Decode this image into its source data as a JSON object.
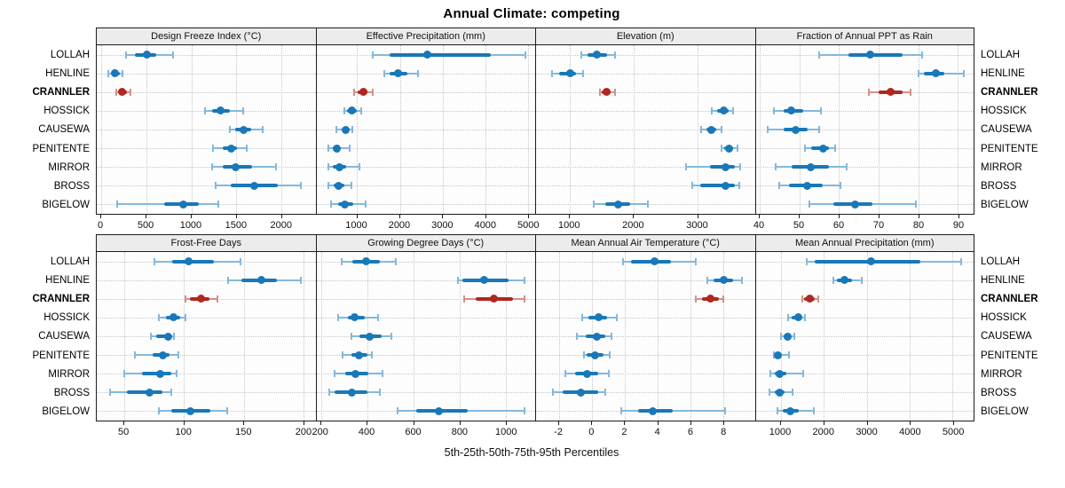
{
  "title": "Annual Climate: competing",
  "footer": "5th-25th-50th-75th-95th Percentiles",
  "sites": [
    "LOLLAH",
    "HENLINE",
    "CRANNLER",
    "HOSSICK",
    "CAUSEWA",
    "PENITENTE",
    "MIRROR",
    "BROSS",
    "BIGELOW"
  ],
  "highlight_site": "CRANNLER",
  "colors": {
    "blue": "#1878b8",
    "blue_light": "#85b8da",
    "red": "#b02620",
    "red_light": "#d4908c",
    "strip_bg": "#ececec",
    "grid": "#c6c6c6",
    "border": "#1c1c1c"
  },
  "chart_data": [
    {
      "type": "dotplot-interval",
      "title": "Design Freeze Index (°C)",
      "xlim": [
        -50,
        2380
      ],
      "ticks": [
        0,
        500,
        1000,
        1500,
        2000
      ],
      "percentile_labels": [
        "5th",
        "25th",
        "50th",
        "75th",
        "95th"
      ],
      "series": [
        {
          "site": "LOLLAH",
          "percentiles": [
            275,
            370,
            505,
            615,
            800
          ]
        },
        {
          "site": "HENLINE",
          "percentiles": [
            80,
            120,
            155,
            205,
            235
          ]
        },
        {
          "site": "CRANNLER",
          "percentiles": [
            170,
            195,
            235,
            285,
            325
          ]
        },
        {
          "site": "HOSSICK",
          "percentiles": [
            1150,
            1235,
            1330,
            1430,
            1575
          ]
        },
        {
          "site": "CAUSEWA",
          "percentiles": [
            1430,
            1490,
            1580,
            1665,
            1795
          ]
        },
        {
          "site": "PENITENTE",
          "percentiles": [
            1240,
            1345,
            1440,
            1505,
            1620
          ]
        },
        {
          "site": "MIRROR",
          "percentiles": [
            1230,
            1345,
            1495,
            1680,
            1940
          ]
        },
        {
          "site": "BROSS",
          "percentiles": [
            1270,
            1440,
            1700,
            1960,
            2215
          ]
        },
        {
          "site": "BIGELOW",
          "percentiles": [
            180,
            695,
            915,
            1085,
            1305
          ]
        }
      ]
    },
    {
      "type": "dotplot-interval",
      "title": "Effective Precipitation (mm)",
      "xlim": [
        50,
        5160
      ],
      "ticks": [
        1000,
        2000,
        3000,
        4000,
        5000
      ],
      "percentile_labels": [
        "5th",
        "25th",
        "50th",
        "75th",
        "95th"
      ],
      "series": [
        {
          "site": "LOLLAH",
          "percentiles": [
            1370,
            1755,
            2645,
            4130,
            4940
          ]
        },
        {
          "site": "HENLINE",
          "percentiles": [
            1635,
            1755,
            1965,
            2175,
            2420
          ]
        },
        {
          "site": "CRANNLER",
          "percentiles": [
            935,
            1020,
            1140,
            1245,
            1370
          ]
        },
        {
          "site": "HOSSICK",
          "percentiles": [
            695,
            775,
            880,
            985,
            1090
          ]
        },
        {
          "site": "CAUSEWA",
          "percentiles": [
            520,
            640,
            730,
            810,
            880
          ]
        },
        {
          "site": "PENITENTE",
          "percentiles": [
            340,
            430,
            520,
            600,
            825
          ]
        },
        {
          "site": "MIRROR",
          "percentiles": [
            325,
            430,
            580,
            740,
            1055
          ]
        },
        {
          "site": "BROSS",
          "percentiles": [
            340,
            445,
            570,
            705,
            870
          ]
        },
        {
          "site": "BIGELOW",
          "percentiles": [
            395,
            555,
            710,
            915,
            1195
          ]
        }
      ]
    },
    {
      "type": "dotplot-interval",
      "title": "Elevation (m)",
      "xlim": [
        470,
        3900
      ],
      "ticks": [
        1000,
        2000,
        3000
      ],
      "percentile_labels": [
        "5th",
        "25th",
        "50th",
        "75th",
        "95th"
      ],
      "series": [
        {
          "site": "LOLLAH",
          "percentiles": [
            1180,
            1280,
            1425,
            1580,
            1705
          ]
        },
        {
          "site": "HENLINE",
          "percentiles": [
            725,
            830,
            1000,
            1100,
            1210
          ]
        },
        {
          "site": "CRANNLER",
          "percentiles": [
            1465,
            1500,
            1580,
            1645,
            1715
          ]
        },
        {
          "site": "HOSSICK",
          "percentiles": [
            3220,
            3310,
            3410,
            3485,
            3565
          ]
        },
        {
          "site": "CAUSEWA",
          "percentiles": [
            3060,
            3140,
            3220,
            3295,
            3385
          ]
        },
        {
          "site": "PENITENTE",
          "percentiles": [
            3375,
            3420,
            3500,
            3555,
            3630
          ]
        },
        {
          "site": "MIRROR",
          "percentiles": [
            2815,
            3195,
            3445,
            3585,
            3665
          ]
        },
        {
          "site": "BROSS",
          "percentiles": [
            2915,
            3050,
            3445,
            3590,
            3655
          ]
        },
        {
          "site": "BIGELOW",
          "percentiles": [
            1370,
            1555,
            1760,
            1950,
            2220
          ]
        }
      ]
    },
    {
      "type": "dotplot-interval",
      "title": "Fraction of Annual PPT as Rain",
      "xlim": [
        39,
        94
      ],
      "ticks": [
        40,
        50,
        60,
        70,
        80,
        90
      ],
      "percentile_labels": [
        "5th",
        "25th",
        "50th",
        "75th",
        "95th"
      ],
      "series": [
        {
          "site": "LOLLAH",
          "percentiles": [
            55,
            62.5,
            68,
            76,
            81
          ]
        },
        {
          "site": "HENLINE",
          "percentiles": [
            80,
            81.5,
            84.5,
            86.5,
            91.5
          ]
        },
        {
          "site": "CRANNLER",
          "percentiles": [
            67.5,
            70,
            73,
            76,
            78
          ]
        },
        {
          "site": "HOSSICK",
          "percentiles": [
            43.5,
            46,
            48,
            51,
            55.5
          ]
        },
        {
          "site": "CAUSEWA",
          "percentiles": [
            42,
            46,
            49,
            52,
            55
          ]
        },
        {
          "site": "PENITENTE",
          "percentiles": [
            51.5,
            53,
            56,
            57.5,
            59
          ]
        },
        {
          "site": "MIRROR",
          "percentiles": [
            44,
            48,
            53,
            57.5,
            62
          ]
        },
        {
          "site": "BROSS",
          "percentiles": [
            45,
            47.5,
            52,
            56,
            60.5
          ]
        },
        {
          "site": "BIGELOW",
          "percentiles": [
            52.5,
            58.5,
            64,
            68.5,
            79.5
          ]
        }
      ]
    },
    {
      "type": "dotplot-interval",
      "title": "Frost-Free Days",
      "xlim": [
        27,
        210
      ],
      "ticks": [
        50,
        100,
        150,
        200
      ],
      "percentile_labels": [
        "5th",
        "25th",
        "50th",
        "75th",
        "95th"
      ],
      "series": [
        {
          "site": "LOLLAH",
          "percentiles": [
            75,
            90,
            104,
            125,
            147
          ]
        },
        {
          "site": "HENLINE",
          "percentiles": [
            137,
            148,
            165,
            178,
            198
          ]
        },
        {
          "site": "CRANNLER",
          "percentiles": [
            101,
            105,
            114,
            121,
            128
          ]
        },
        {
          "site": "HOSSICK",
          "percentiles": [
            79,
            85,
            91.5,
            97,
            101
          ]
        },
        {
          "site": "CAUSEWA",
          "percentiles": [
            72,
            77,
            86.5,
            89.5,
            91.5
          ]
        },
        {
          "site": "PENITENTE",
          "percentiles": [
            59,
            74,
            82,
            88,
            95
          ]
        },
        {
          "site": "MIRROR",
          "percentiles": [
            50,
            65,
            80,
            89.5,
            94
          ]
        },
        {
          "site": "BROSS",
          "percentiles": [
            38,
            52,
            71,
            82,
            89
          ]
        },
        {
          "site": "BIGELOW",
          "percentiles": [
            79,
            89,
            105,
            122,
            136
          ]
        }
      ]
    },
    {
      "type": "dotplot-interval",
      "title": "Growing Degree Days (°C)",
      "xlim": [
        180,
        1125
      ],
      "ticks": [
        200,
        400,
        600,
        800,
        1000
      ],
      "percentile_labels": [
        "5th",
        "25th",
        "50th",
        "75th",
        "95th"
      ],
      "series": [
        {
          "site": "LOLLAH",
          "percentiles": [
            290,
            335,
            395,
            455,
            525
          ]
        },
        {
          "site": "HENLINE",
          "percentiles": [
            790,
            810,
            905,
            1010,
            1080
          ]
        },
        {
          "site": "CRANNLER",
          "percentiles": [
            820,
            870,
            945,
            1030,
            1080
          ]
        },
        {
          "site": "HOSSICK",
          "percentiles": [
            275,
            315,
            345,
            390,
            445
          ]
        },
        {
          "site": "CAUSEWA",
          "percentiles": [
            330,
            365,
            410,
            460,
            505
          ]
        },
        {
          "site": "PENITENTE",
          "percentiles": [
            295,
            330,
            365,
            400,
            420
          ]
        },
        {
          "site": "MIRROR",
          "percentiles": [
            260,
            305,
            347,
            405,
            465
          ]
        },
        {
          "site": "BROSS",
          "percentiles": [
            235,
            260,
            335,
            400,
            455
          ]
        },
        {
          "site": "BIGELOW",
          "percentiles": [
            530,
            610,
            710,
            835,
            1080
          ]
        }
      ]
    },
    {
      "type": "dotplot-interval",
      "title": "Mean Annual Air Temperature (°C)",
      "xlim": [
        -3.4,
        9.9
      ],
      "ticks": [
        -2,
        0,
        2,
        4,
        6,
        8
      ],
      "percentile_labels": [
        "5th",
        "25th",
        "50th",
        "75th",
        "95th"
      ],
      "series": [
        {
          "site": "LOLLAH",
          "percentiles": [
            1.9,
            2.4,
            3.8,
            4.8,
            6.3
          ]
        },
        {
          "site": "HENLINE",
          "percentiles": [
            7.0,
            7.4,
            8.0,
            8.6,
            9.1
          ]
        },
        {
          "site": "CRANNLER",
          "percentiles": [
            6.3,
            6.7,
            7.2,
            7.7,
            8.0
          ]
        },
        {
          "site": "HOSSICK",
          "percentiles": [
            -0.6,
            -0.2,
            0.4,
            0.9,
            1.5
          ]
        },
        {
          "site": "CAUSEWA",
          "percentiles": [
            -0.9,
            -0.4,
            0.3,
            0.8,
            1.2
          ]
        },
        {
          "site": "PENITENTE",
          "percentiles": [
            -0.5,
            -0.3,
            0.2,
            0.7,
            1.1
          ]
        },
        {
          "site": "MIRROR",
          "percentiles": [
            -1.6,
            -1.0,
            -0.3,
            0.4,
            1.0
          ]
        },
        {
          "site": "BROSS",
          "percentiles": [
            -2.4,
            -1.8,
            -0.7,
            0.4,
            0.8
          ]
        },
        {
          "site": "BIGELOW",
          "percentiles": [
            1.8,
            2.8,
            3.7,
            4.9,
            8.1
          ]
        }
      ]
    },
    {
      "type": "dotplot-interval",
      "title": "Mean Annual Precipitation (mm)",
      "xlim": [
        415,
        5490
      ],
      "ticks": [
        1000,
        2000,
        3000,
        4000,
        5000
      ],
      "percentile_labels": [
        "5th",
        "25th",
        "50th",
        "75th",
        "95th"
      ],
      "series": [
        {
          "site": "LOLLAH",
          "percentiles": [
            1600,
            1800,
            3100,
            4250,
            5200
          ]
        },
        {
          "site": "HENLINE",
          "percentiles": [
            2220,
            2310,
            2480,
            2655,
            2875
          ]
        },
        {
          "site": "CRANNLER",
          "percentiles": [
            1500,
            1550,
            1675,
            1790,
            1880
          ]
        },
        {
          "site": "HOSSICK",
          "percentiles": [
            1170,
            1260,
            1400,
            1495,
            1565
          ]
        },
        {
          "site": "CAUSEWA",
          "percentiles": [
            1000,
            1070,
            1160,
            1240,
            1310
          ]
        },
        {
          "site": "PENITENTE",
          "percentiles": [
            830,
            860,
            930,
            1020,
            1190
          ]
        },
        {
          "site": "MIRROR",
          "percentiles": [
            760,
            850,
            965,
            1125,
            1515
          ]
        },
        {
          "site": "BROSS",
          "percentiles": [
            745,
            850,
            965,
            1085,
            1275
          ]
        },
        {
          "site": "BIGELOW",
          "percentiles": [
            915,
            1055,
            1230,
            1415,
            1760
          ]
        }
      ]
    }
  ]
}
